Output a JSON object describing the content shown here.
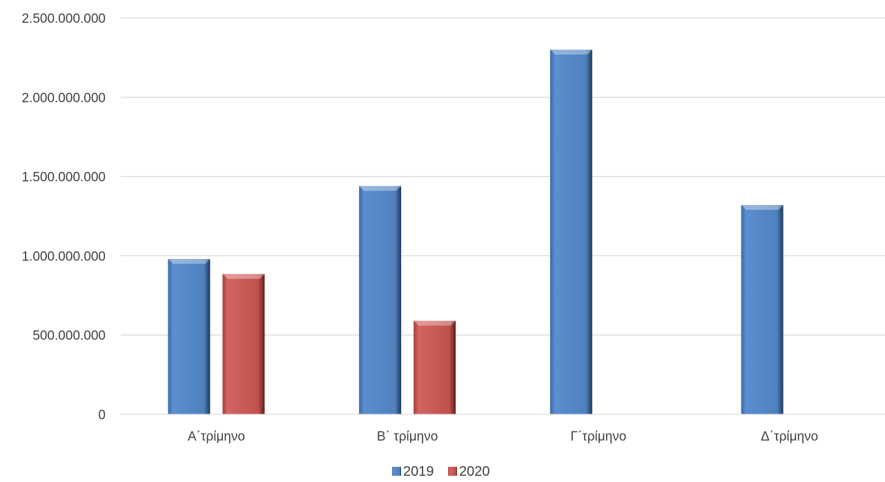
{
  "chart_data": {
    "type": "bar",
    "title": "",
    "xlabel": "",
    "ylabel": "",
    "categories": [
      "Α΄τρίμηνο",
      "Β΄ τρίμηνο",
      "Γ΄τρίμηνο",
      "Δ΄τρίμηνο"
    ],
    "series": [
      {
        "name": "2019",
        "values": [
          980000000,
          1440000000,
          2300000000,
          1320000000
        ],
        "color": "#4F81BD"
      },
      {
        "name": "2020",
        "values": [
          885000000,
          590000000,
          null,
          null
        ],
        "color": "#C0504D"
      }
    ],
    "ylim": [
      0,
      2500000000
    ],
    "yticks": [
      0,
      500000000,
      1000000000,
      1500000000,
      2000000000,
      2500000000
    ],
    "ytick_labels": [
      "0",
      "500.000.000",
      "1.000.000.000",
      "1.500.000.000",
      "2.000.000.000",
      "2.500.000.000"
    ],
    "grid": true,
    "legend_position": "bottom"
  }
}
